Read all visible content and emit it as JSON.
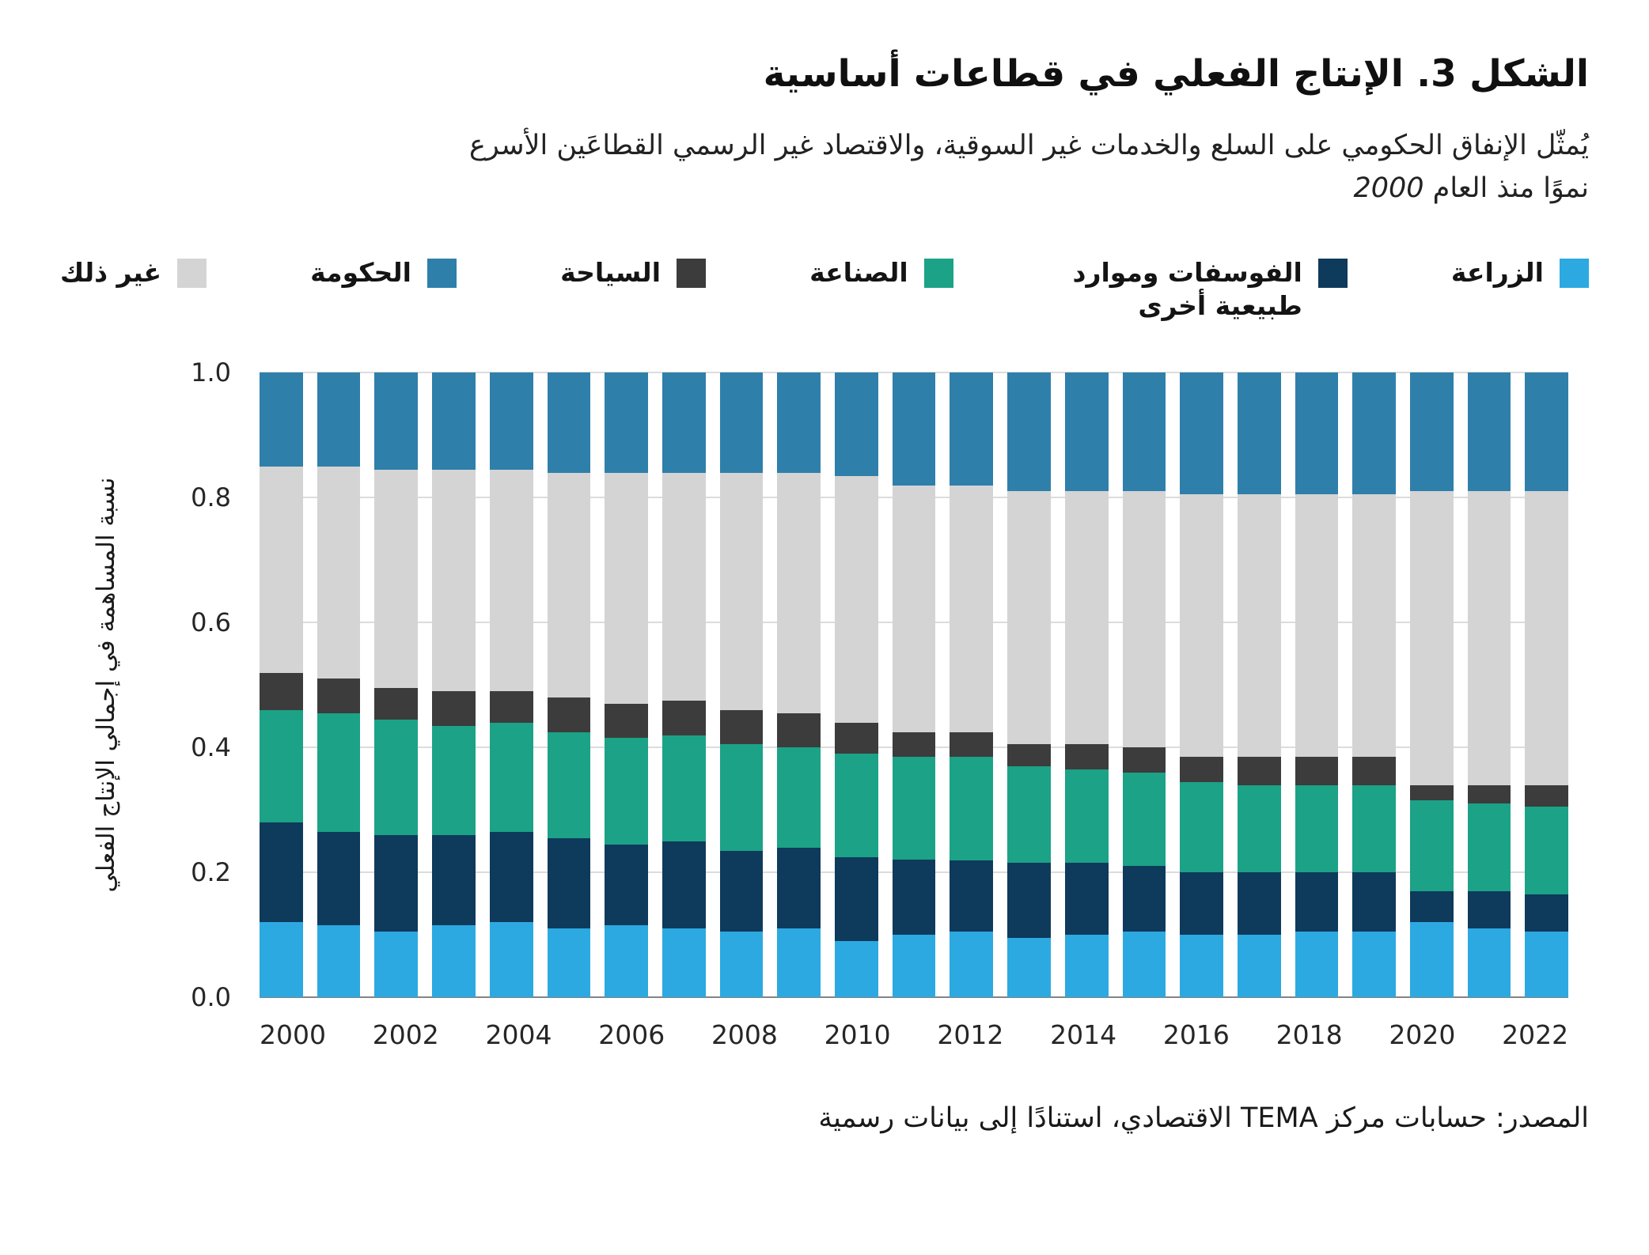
{
  "title": "الشكل 3. الإنتاج الفعلي في قطاعات أساسية",
  "subtitle": {
    "line1": "يُمثّل الإنفاق الحكومي على السلع والخدمات غير السوقية، والاقتصاد غير الرسمي القطاعَين الأسرع",
    "line2": "نموًا منذ العام",
    "year": "2000"
  },
  "legend": [
    {
      "label": "الزراعة",
      "color": "#2CA9E1"
    },
    {
      "label": "الفوسفات وموارد طبيعية أخرى",
      "color": "#0E3A5C"
    },
    {
      "label": "الصناعة",
      "color": "#1CA286"
    },
    {
      "label": "السياحة",
      "color": "#3C3C3C"
    },
    {
      "label": "الحكومة",
      "color": "#2F7FAB"
    },
    {
      "label": "غير ذلك",
      "color": "#D4D4D4"
    }
  ],
  "source": "المصدر: حسابات مركز TEMA الاقتصادي، استنادًا إلى بيانات رسمية",
  "chart_data": {
    "type": "bar",
    "stacked": true,
    "title": "الشكل 3. الإنتاج الفعلي في قطاعات أساسية",
    "ylabel": "نسبة المساهمة في إجمالي الإنتاج الفعلي",
    "xlabel": "",
    "grid": true,
    "legend_position": "top",
    "ylim": [
      0,
      1.0
    ],
    "yticks": [
      0,
      0.2,
      0.4,
      0.6,
      0.8,
      1.0
    ],
    "ytick_labels": [
      "0.0",
      "0.2",
      "0.4",
      "0.6",
      "0.8",
      "1.0"
    ],
    "x": [
      2000,
      2001,
      2002,
      2003,
      2004,
      2005,
      2006,
      2007,
      2008,
      2009,
      2010,
      2011,
      2012,
      2013,
      2014,
      2015,
      2016,
      2017,
      2018,
      2019,
      2020,
      2021,
      2022
    ],
    "x_tick_every": 2,
    "series": [
      {
        "key": "agriculture",
        "name": "الزراعة",
        "color": "#2CA9E1",
        "values": [
          0.12,
          0.115,
          0.105,
          0.115,
          0.12,
          0.11,
          0.115,
          0.11,
          0.105,
          0.11,
          0.09,
          0.1,
          0.105,
          0.095,
          0.1,
          0.105,
          0.1,
          0.1,
          0.105,
          0.105,
          0.12,
          0.11,
          0.105
        ]
      },
      {
        "key": "phosphates-natural-resources",
        "name": "الفوسفات وموارد طبيعية أخرى",
        "color": "#0E3A5C",
        "values": [
          0.16,
          0.15,
          0.155,
          0.145,
          0.145,
          0.145,
          0.13,
          0.14,
          0.13,
          0.13,
          0.135,
          0.12,
          0.115,
          0.12,
          0.115,
          0.105,
          0.1,
          0.1,
          0.095,
          0.095,
          0.05,
          0.06,
          0.06
        ]
      },
      {
        "key": "industry",
        "name": "الصناعة",
        "color": "#1CA286",
        "values": [
          0.18,
          0.19,
          0.185,
          0.175,
          0.175,
          0.17,
          0.17,
          0.17,
          0.17,
          0.16,
          0.165,
          0.165,
          0.165,
          0.155,
          0.15,
          0.15,
          0.145,
          0.14,
          0.14,
          0.14,
          0.145,
          0.14,
          0.14
        ]
      },
      {
        "key": "tourism",
        "name": "السياحة",
        "color": "#3C3C3C",
        "values": [
          0.06,
          0.055,
          0.05,
          0.055,
          0.05,
          0.055,
          0.055,
          0.055,
          0.055,
          0.055,
          0.05,
          0.04,
          0.04,
          0.035,
          0.04,
          0.04,
          0.04,
          0.045,
          0.045,
          0.045,
          0.025,
          0.03,
          0.035
        ]
      },
      {
        "key": "other",
        "name": "غير ذلك",
        "color": "#D4D4D4",
        "values": [
          0.33,
          0.34,
          0.35,
          0.355,
          0.355,
          0.36,
          0.37,
          0.365,
          0.38,
          0.385,
          0.395,
          0.395,
          0.395,
          0.405,
          0.405,
          0.41,
          0.42,
          0.42,
          0.42,
          0.42,
          0.47,
          0.47,
          0.47
        ]
      },
      {
        "key": "government",
        "name": "الحكومة",
        "color": "#2F7FAB",
        "values": [
          0.15,
          0.15,
          0.155,
          0.155,
          0.155,
          0.16,
          0.16,
          0.16,
          0.16,
          0.16,
          0.165,
          0.18,
          0.18,
          0.19,
          0.19,
          0.19,
          0.195,
          0.195,
          0.195,
          0.195,
          0.19,
          0.19,
          0.19
        ]
      }
    ]
  }
}
